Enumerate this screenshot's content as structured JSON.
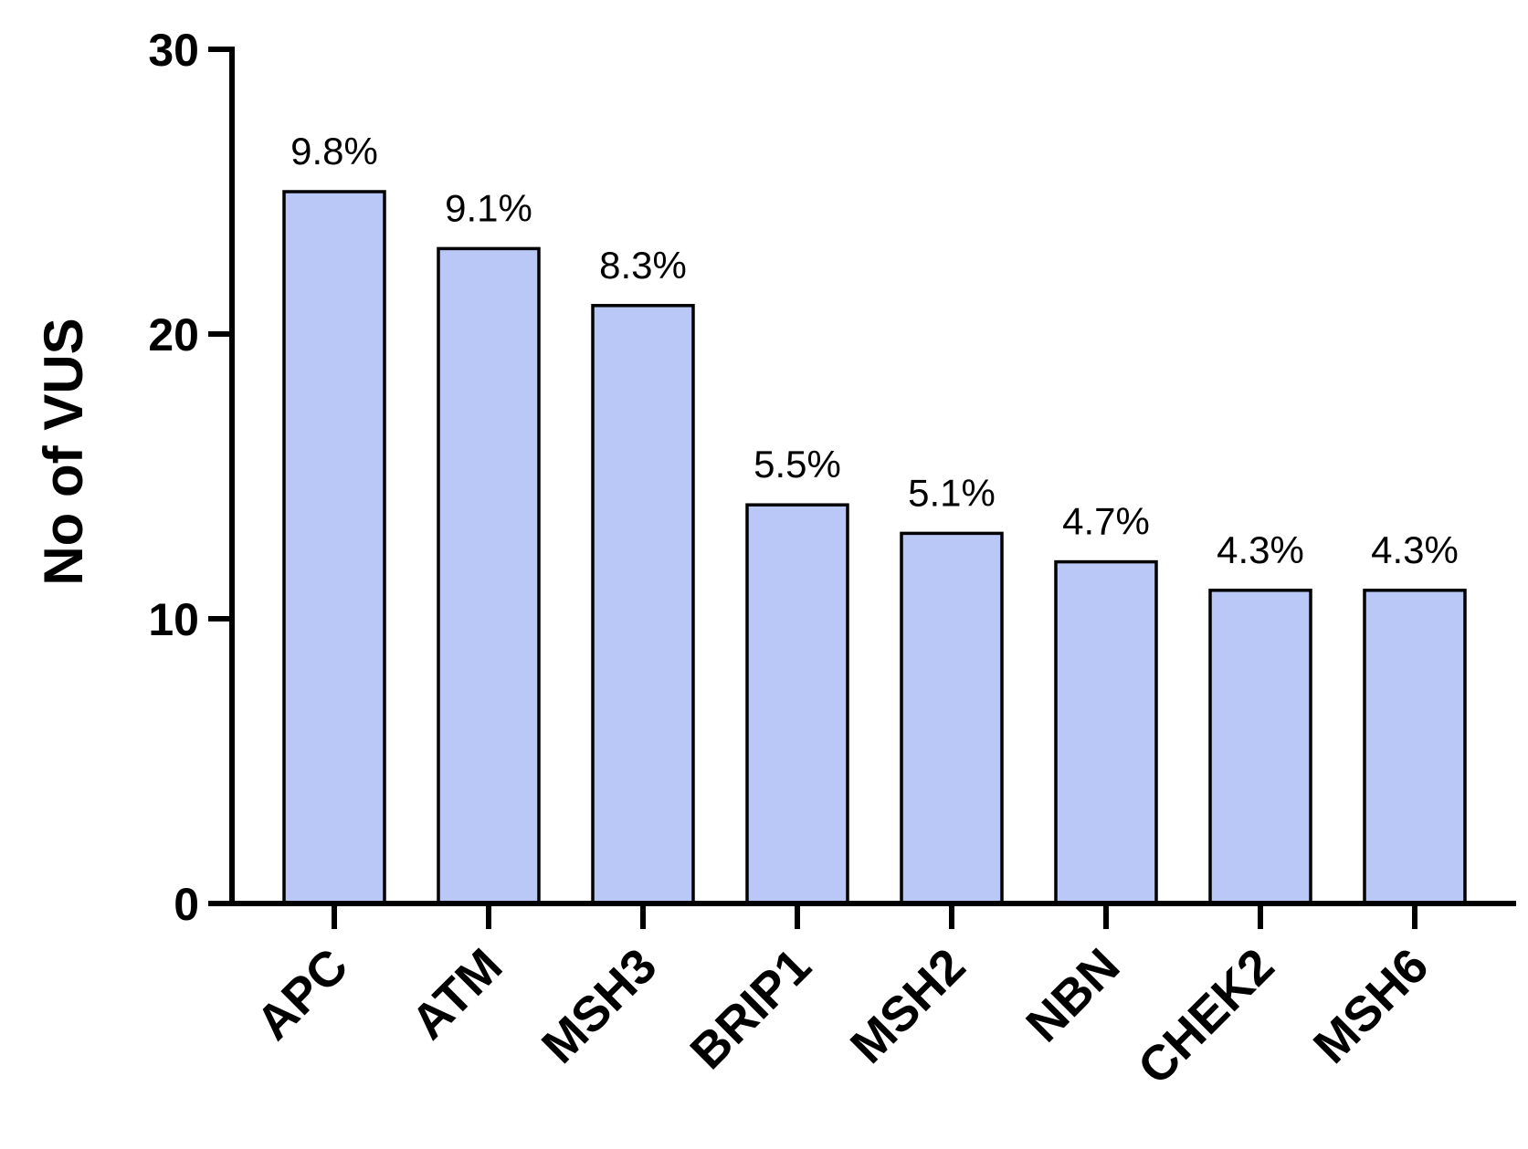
{
  "chart_data": {
    "type": "bar",
    "categories": [
      "APC",
      "ATM",
      "MSH3",
      "BRIP1",
      "MSH2",
      "NBN",
      "CHEK2",
      "MSH6"
    ],
    "values": [
      25,
      23,
      21,
      14,
      13,
      12,
      11,
      11
    ],
    "data_labels": [
      "9.8%",
      "9.1%",
      "8.3%",
      "5.5%",
      "5.1%",
      "4.7%",
      "4.3%",
      "4.3%"
    ],
    "title": "",
    "xlabel": "",
    "ylabel": "No of VUS",
    "ylim": [
      0,
      30
    ],
    "yticks": [
      0,
      10,
      20,
      30
    ],
    "ytick_labels": [
      "0",
      "10",
      "20",
      "30"
    ],
    "grid": false,
    "legend": "none",
    "colors": {
      "bar_fill": "#bac8f7",
      "bar_edge": "#000000",
      "axis": "#000000"
    }
  }
}
